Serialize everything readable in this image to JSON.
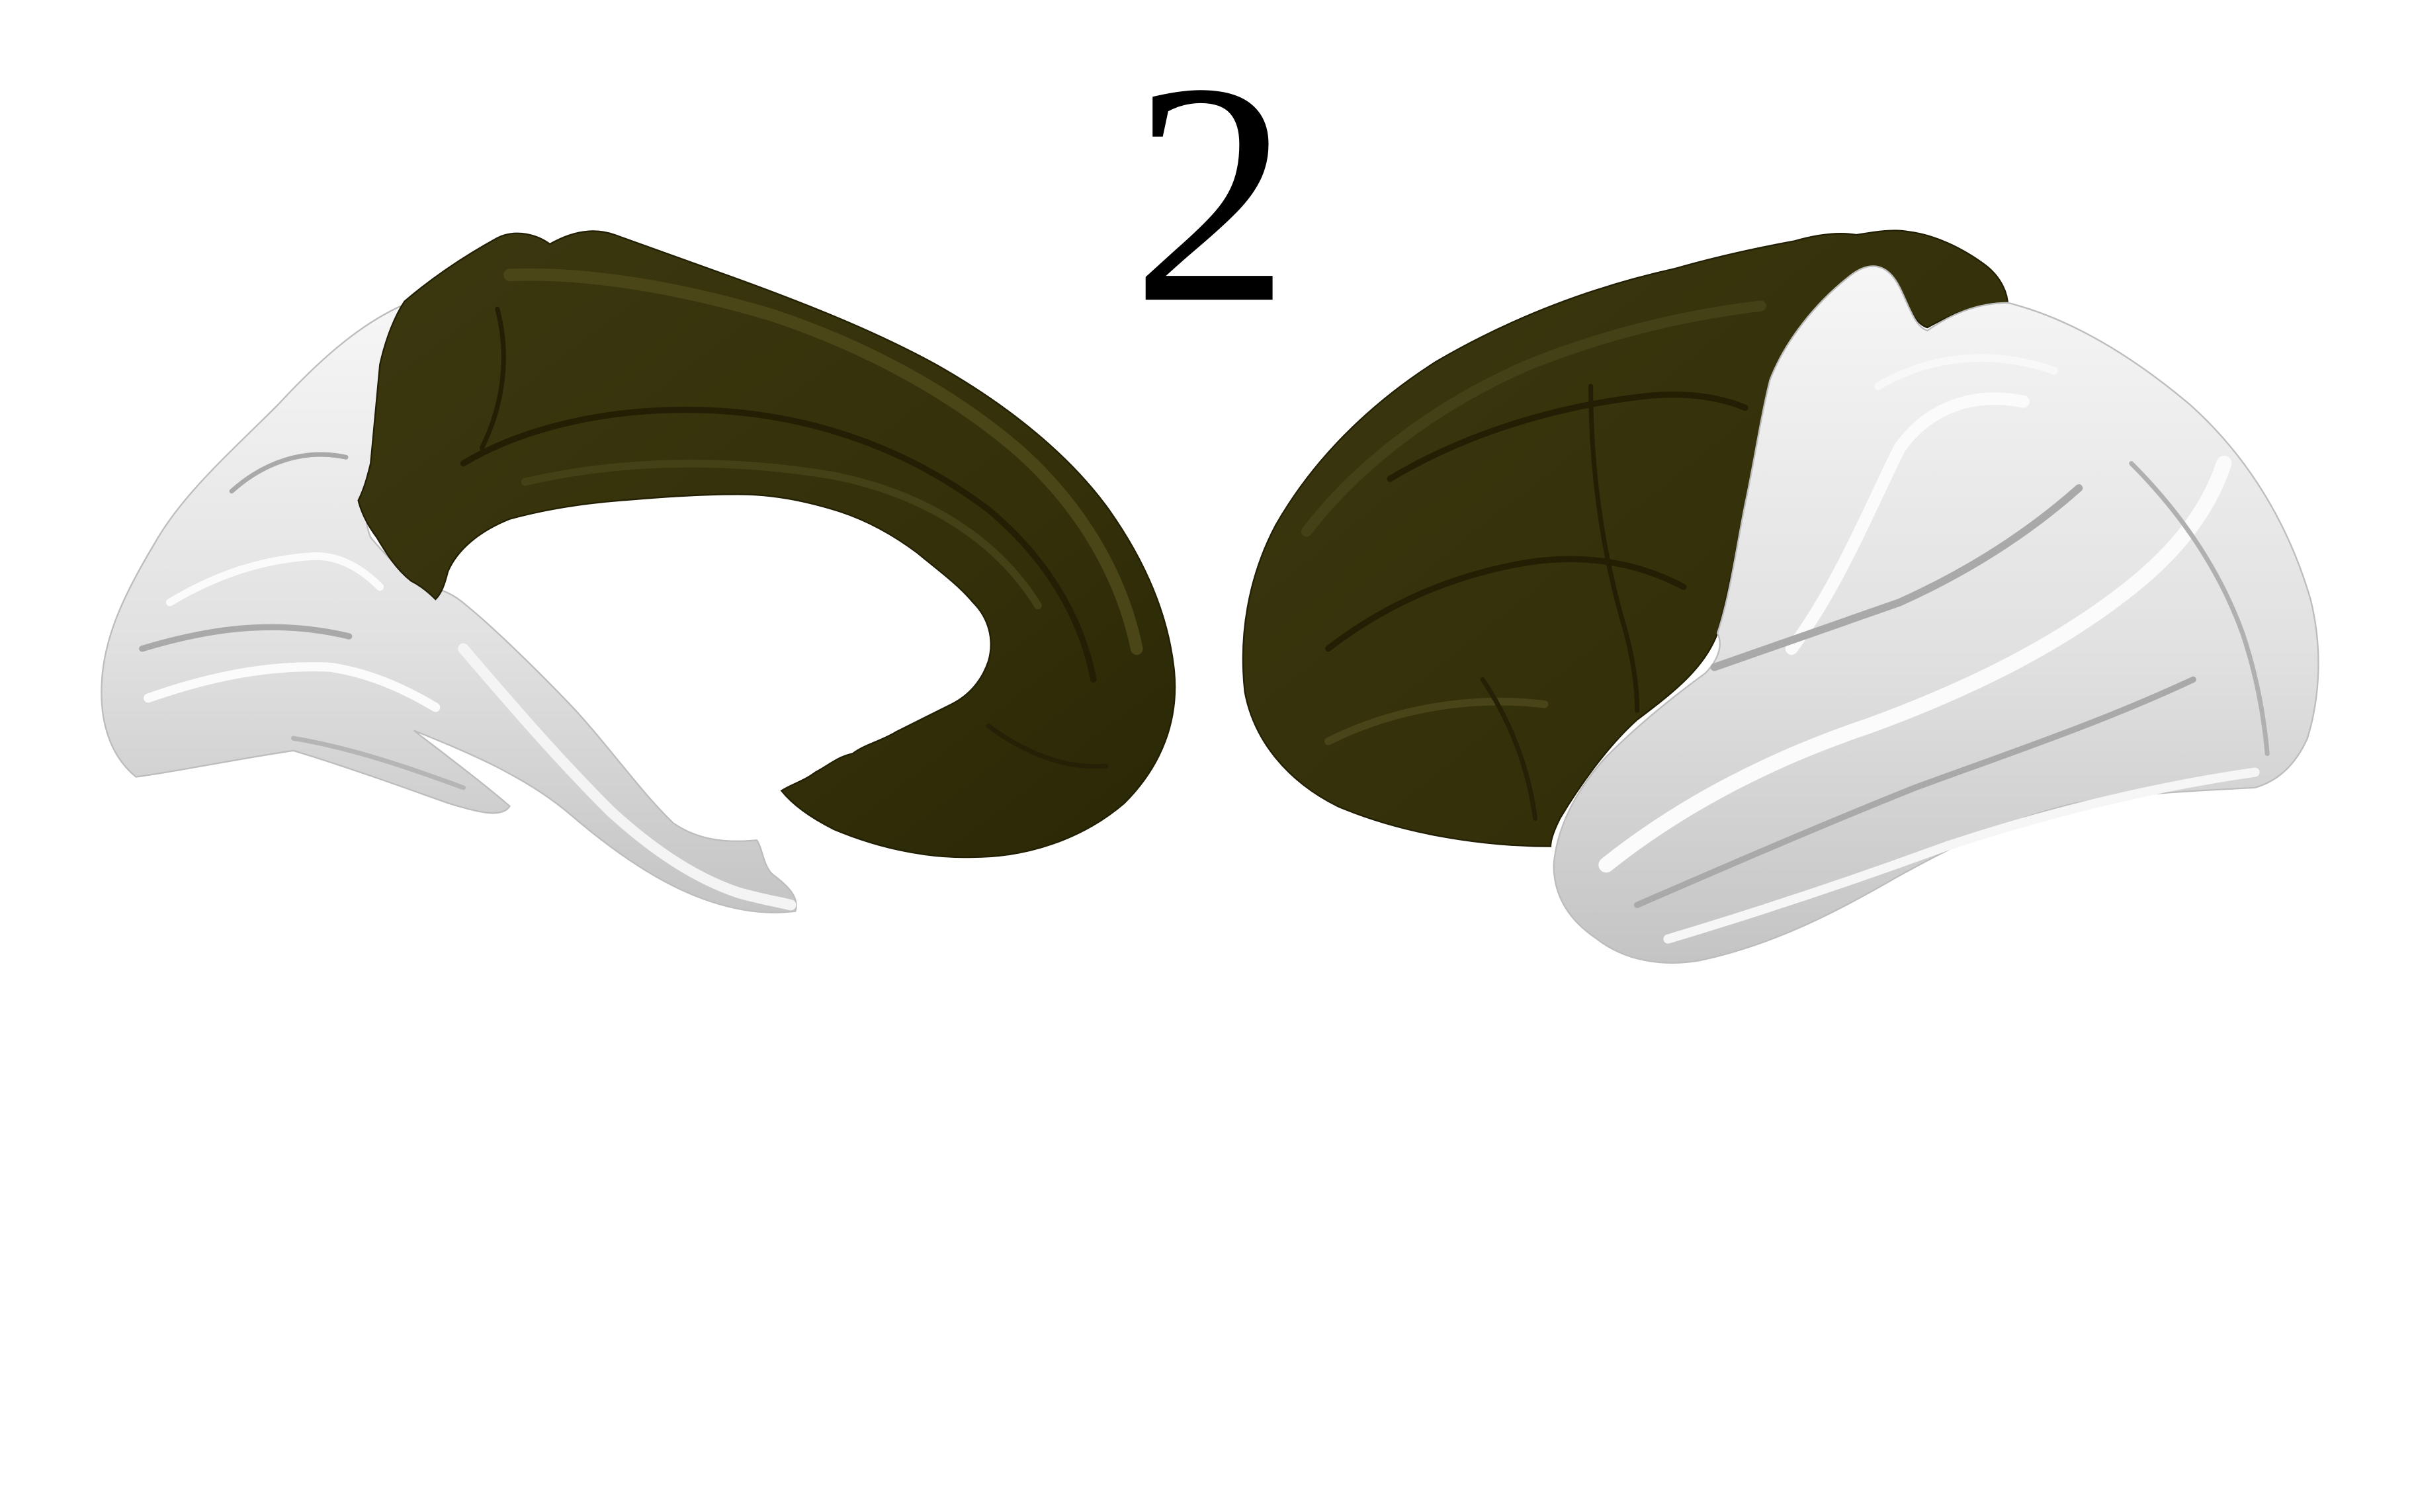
{
  "figure": {
    "label": "2",
    "colors": {
      "background": "#ffffff",
      "highlighted_region": "#35330a",
      "highlighted_region_shadow": "#221f04",
      "highlighted_region_sheen": "#474317",
      "unhighlighted_surface": "#e4e4e4",
      "unhighlighted_shadow": "#a9a9a9",
      "unhighlighted_highlight": "#fbfbfb"
    },
    "views": [
      {
        "view": "medial",
        "hemisphere_icon": "brain-medial-surface"
      },
      {
        "view": "lateral",
        "hemisphere_icon": "brain-lateral-surface"
      }
    ]
  }
}
